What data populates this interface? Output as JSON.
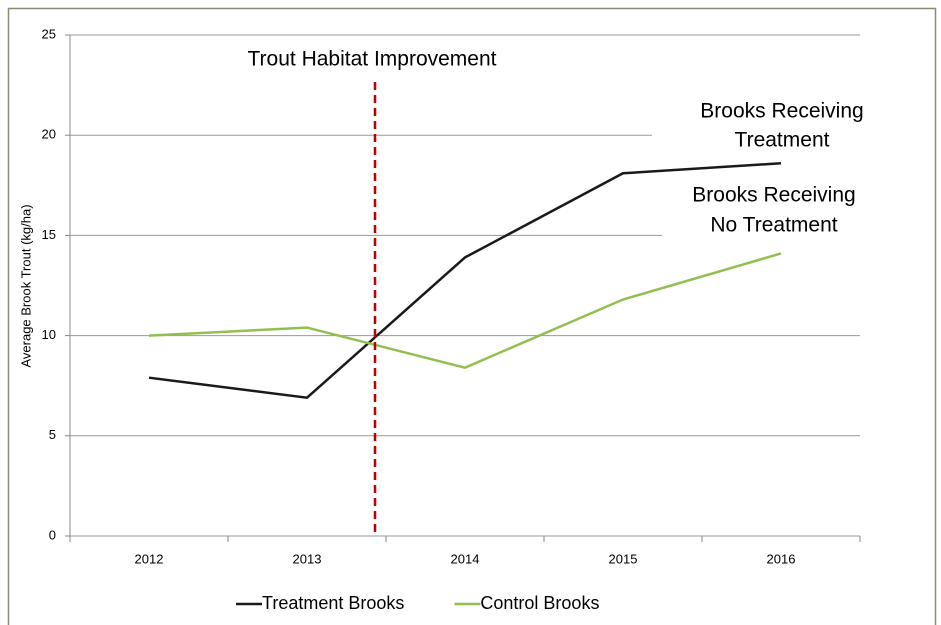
{
  "chart_data": {
    "type": "line",
    "y_label": "Average Brook Trout (kg/ha)",
    "categories": [
      "2012",
      "2013",
      "2014",
      "2015",
      "2016"
    ],
    "series": [
      {
        "name": "Treatment Brooks",
        "color": "#1a1a1a",
        "values": [
          7.9,
          6.9,
          13.9,
          18.1,
          18.6
        ]
      },
      {
        "name": "Control Brooks",
        "color": "#92bf4f",
        "values": [
          10.0,
          10.4,
          8.4,
          11.8,
          14.1
        ]
      }
    ],
    "ylim": [
      0,
      25
    ],
    "yticks": [
      0,
      5,
      10,
      15,
      20,
      25
    ],
    "grid": true,
    "annotations": [
      "Trout Habitat Improvement",
      [
        "Brooks Receiving",
        "Treatment"
      ],
      [
        "Brooks Receiving",
        "No Treatment"
      ]
    ],
    "legend": "bottom"
  }
}
